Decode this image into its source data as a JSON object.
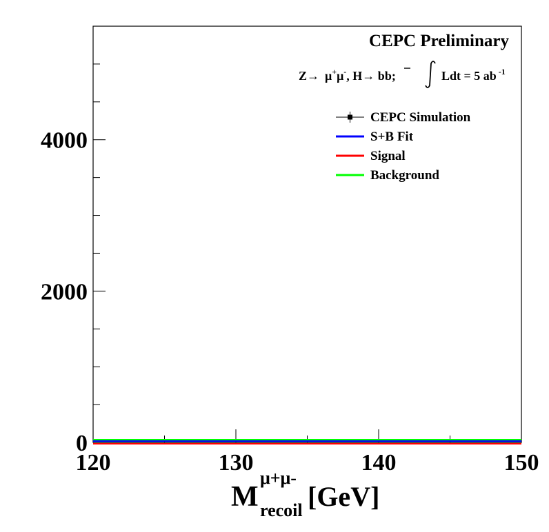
{
  "chart_data": {
    "type": "line",
    "title": "CEPC Preliminary",
    "process": {
      "prefix": "Z→",
      "mu": "μ",
      "plus": "+",
      "minus": "-",
      "sep": ", H→ b",
      "bbar": "b",
      "end": ";",
      "lumi": "Ldt = 5 ab",
      "lumi_exp": "-1"
    },
    "xlabel": {
      "main": "M",
      "sup": "μ+μ-",
      "sub": "recoil",
      "unit": "[GeV]"
    },
    "ylabel": "",
    "xlim": [
      120,
      150
    ],
    "ylim": [
      0,
      5500
    ],
    "x_ticks": [
      120,
      130,
      140,
      150
    ],
    "x_tick_labels": [
      "120",
      "130",
      "140",
      "150"
    ],
    "y_ticks": [
      0,
      2000,
      4000
    ],
    "y_tick_labels": [
      "0",
      "2000",
      "4000"
    ],
    "legend_position": "top-right",
    "series": [
      {
        "name": "CEPC Simulation",
        "color": "#000000",
        "style": "markers",
        "x": [
          120,
          150
        ],
        "y": [
          0,
          0
        ]
      },
      {
        "name": "S+B Fit",
        "color": "#0000ff",
        "style": "line",
        "x": [
          120,
          150
        ],
        "y": [
          0,
          0
        ]
      },
      {
        "name": "Signal",
        "color": "#ff0000",
        "style": "line",
        "x": [
          120,
          150
        ],
        "y": [
          0,
          0
        ]
      },
      {
        "name": "Background",
        "color": "#00ff00",
        "style": "line",
        "x": [
          120,
          150
        ],
        "y": [
          0,
          0
        ]
      }
    ]
  }
}
